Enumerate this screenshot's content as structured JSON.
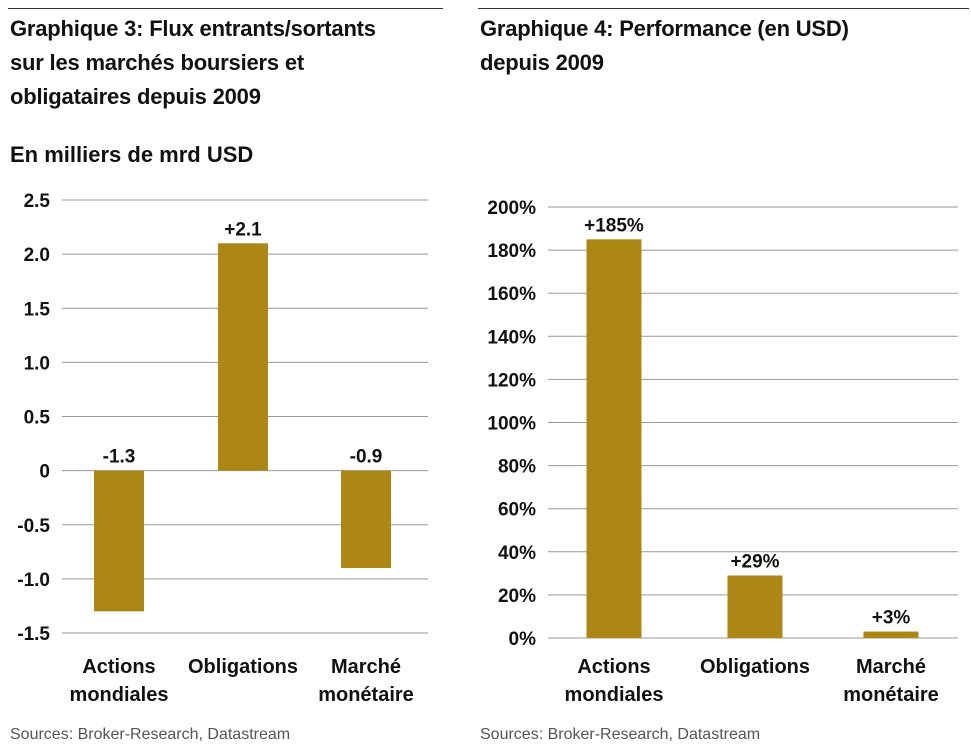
{
  "colors": {
    "bar": "#ad8716",
    "grid": "#999999",
    "text": "#111111",
    "source": "#555555"
  },
  "chart_data": [
    {
      "type": "bar",
      "title": "Graphique 3: Flux entrants/sortants sur les marchés boursiers et obligataires depuis 2009",
      "title_lines": [
        "Graphique 3: Flux entrants/sortants",
        "sur les marchés boursiers et",
        "obligataires depuis 2009"
      ],
      "subtitle": "En milliers de mrd USD",
      "categories": [
        [
          "Actions",
          "mondiales"
        ],
        [
          "Obligations"
        ],
        [
          "Marché",
          "monétaire"
        ]
      ],
      "values": [
        -1.3,
        2.1,
        -0.9
      ],
      "value_labels": [
        "-1.3",
        "+2.1",
        "-0.9"
      ],
      "yticks": [
        2.5,
        2.0,
        1.5,
        1.0,
        0.5,
        0,
        -0.5,
        -1.0,
        -1.5
      ],
      "ytick_labels": [
        "2.5",
        "2.0",
        "1.5",
        "1.0",
        "0.5",
        "0",
        "-0.5",
        "-1.0",
        "-1.5"
      ],
      "ylim": [
        -1.5,
        2.5
      ],
      "grid": true,
      "source": "Sources: Broker-Research, Datastream"
    },
    {
      "type": "bar",
      "title": "Graphique 4: Performance (en USD) depuis 2009",
      "title_lines": [
        "Graphique 4: Performance (en USD)",
        "depuis 2009"
      ],
      "categories": [
        [
          "Actions",
          "mondiales"
        ],
        [
          "Obligations"
        ],
        [
          "Marché",
          "monétaire"
        ]
      ],
      "values": [
        185,
        29,
        3
      ],
      "value_labels": [
        "+185%",
        "+29%",
        "+3%"
      ],
      "yticks": [
        200,
        180,
        160,
        140,
        120,
        100,
        80,
        60,
        40,
        20,
        0
      ],
      "ytick_labels": [
        "200%",
        "180%",
        "160%",
        "140%",
        "120%",
        "100%",
        "80%",
        "60%",
        "40%",
        "20%",
        "0%"
      ],
      "ylim": [
        0,
        200
      ],
      "grid": true,
      "source": "Sources: Broker-Research, Datastream"
    }
  ]
}
